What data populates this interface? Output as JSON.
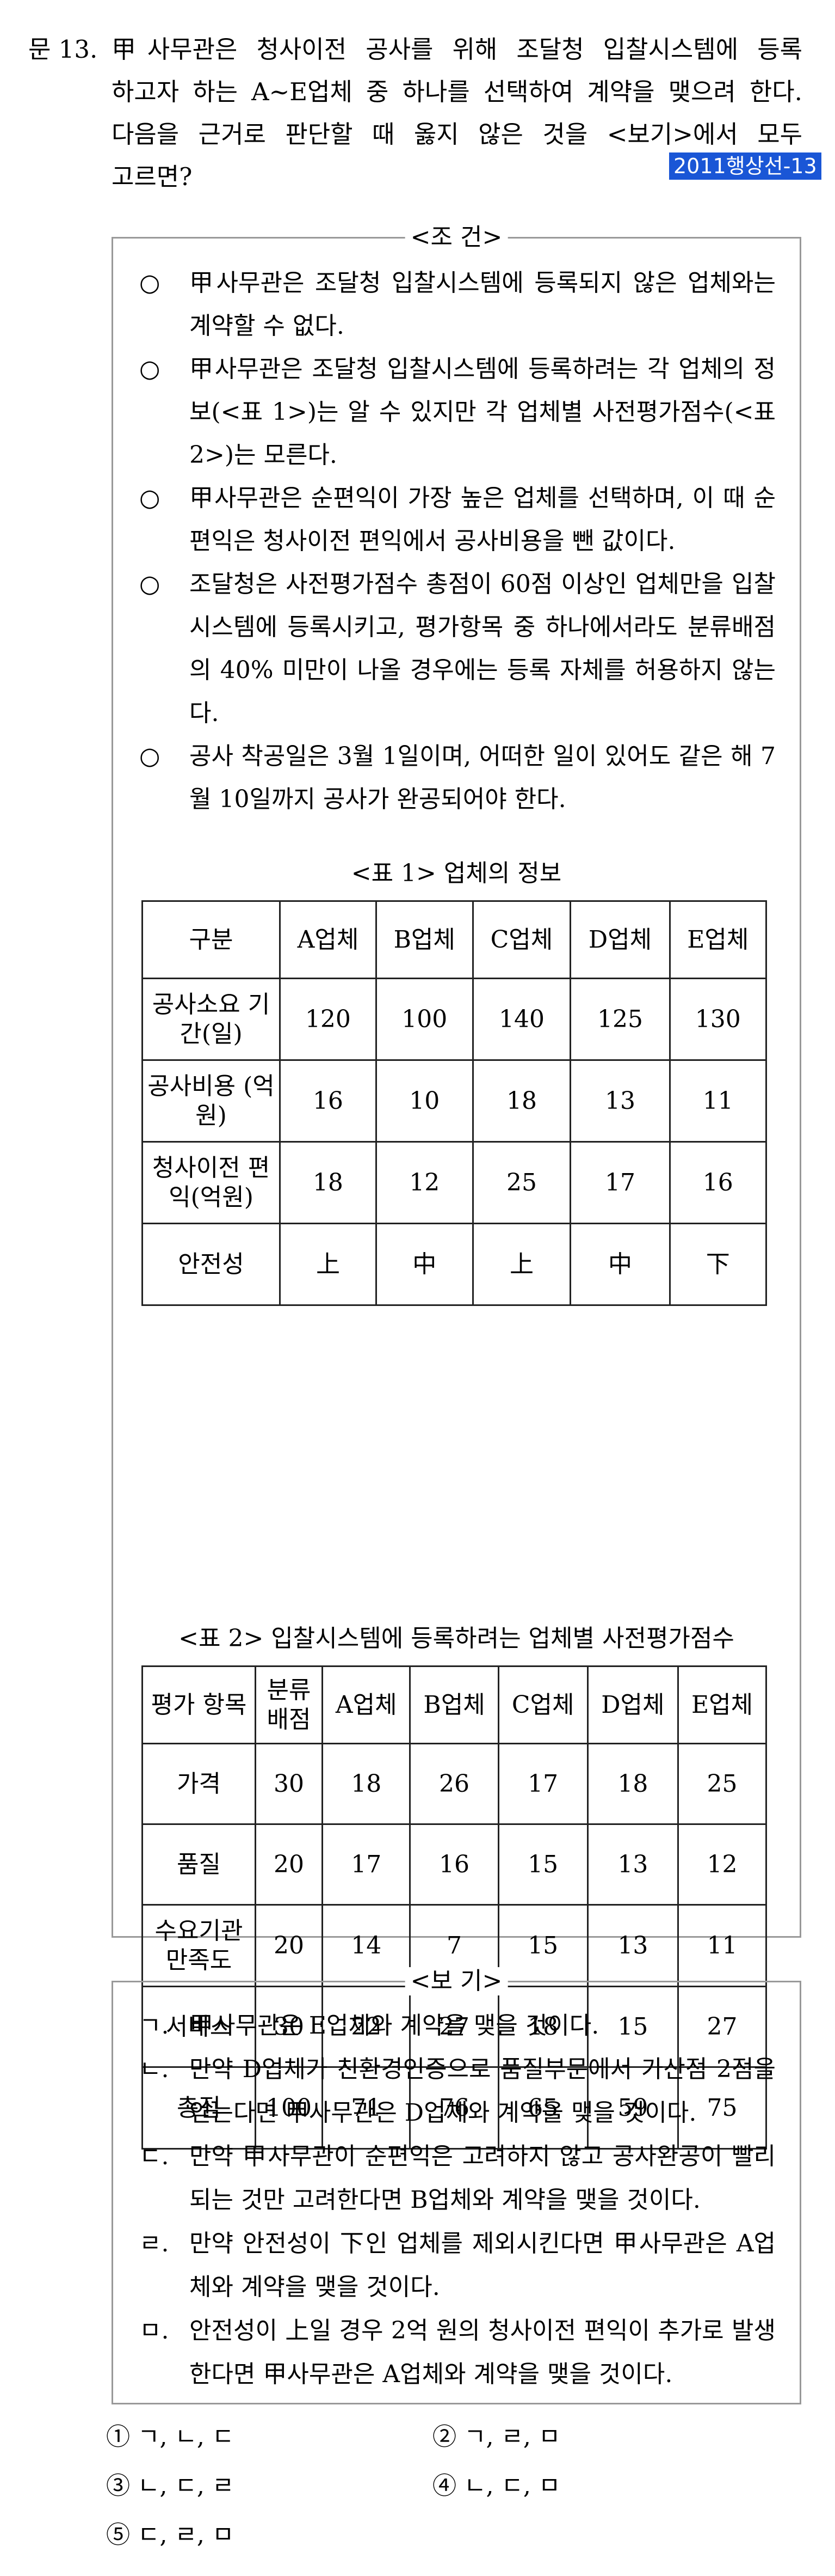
{
  "question": {
    "number": "문 13.",
    "stem_lines": [
      "甲사무관은 청사이전 공사를 위해 조달청 입찰시스템에 등록",
      "하고자 하는 A∼E업체 중 하나를 선택하여 계약을 맺으려 한다.",
      "다음을 근거로 판단할 때 옳지 않은 것을 <보기>에서 모두",
      "고르면?"
    ],
    "source_badge": "2011행상선-13",
    "badge_color": "#1a56d6"
  },
  "conditions": {
    "title": "<조 건>",
    "bullet": "○",
    "items": [
      "甲사무관은 조달청 입찰시스템에 등록되지 않은 업체와는 계약할 수 없다.",
      "甲사무관은 조달청 입찰시스템에 등록하려는 각 업체의 정보(<표 1>)는 알 수 있지만 각 업체별 사전평가점수(<표 2>)는 모른다.",
      "甲사무관은 순편익이 가장 높은 업체를 선택하며, 이 때 순편익은 청사이전 편익에서 공사비용을 뺀 값이다.",
      "조달청은 사전평가점수 총점이 60점 이상인 업체만을 입찰시스템에 등록시키고, 평가항목 중 하나에서라도 분류배점의 40% 미만이 나올 경우에는 등록 자체를 허용하지 않는다.",
      "공사 착공일은 3월 1일이며, 어떠한 일이 있어도 같은 해 7월 10일까지 공사가 완공되어야 한다."
    ]
  },
  "table1": {
    "caption": "<표 1> 업체의 정보",
    "headers": [
      "구분",
      "A업체",
      "B업체",
      "C업체",
      "D업체",
      "E업체"
    ],
    "rows": [
      {
        "label": "공사소요 기간(일)",
        "values": [
          "120",
          "100",
          "140",
          "125",
          "130"
        ]
      },
      {
        "label": "공사비용 (억원)",
        "values": [
          "16",
          "10",
          "18",
          "13",
          "11"
        ]
      },
      {
        "label": "청사이전 편익(억원)",
        "values": [
          "18",
          "12",
          "25",
          "17",
          "16"
        ]
      },
      {
        "label": "안전성",
        "values": [
          "上",
          "中",
          "上",
          "中",
          "下"
        ]
      }
    ]
  },
  "table2": {
    "caption": "<표 2> 입찰시스템에 등록하려는 업체별 사전평가점수",
    "headers": [
      "평가 항목",
      "분류 배점",
      "A업체",
      "B업체",
      "C업체",
      "D업체",
      "E업체"
    ],
    "rows": [
      {
        "label": "가격",
        "values": [
          "30",
          "18",
          "26",
          "17",
          "18",
          "25"
        ]
      },
      {
        "label": "품질",
        "values": [
          "20",
          "17",
          "16",
          "15",
          "13",
          "12"
        ]
      },
      {
        "label": "수요기관 만족도",
        "values": [
          "20",
          "14",
          "7",
          "15",
          "13",
          "11"
        ]
      },
      {
        "label": "서비스",
        "values": [
          "30",
          "22",
          "27",
          "18",
          "15",
          "27"
        ]
      },
      {
        "label": "총점",
        "values": [
          "100",
          "71",
          "76",
          "65",
          "59",
          "75"
        ]
      }
    ]
  },
  "bogi": {
    "title": "<보 기>",
    "items": [
      {
        "mark": "ㄱ.",
        "text": "甲사무관은 E업체와 계약을 맺을 것이다."
      },
      {
        "mark": "ㄴ.",
        "text": "만약 D업체가 친환경인증으로 품질부문에서 가산점 2점을 얻는다면 甲사무관은 D업체와 계약을 맺을 것이다."
      },
      {
        "mark": "ㄷ.",
        "text": "만약 甲사무관이 순편익은 고려하지 않고 공사완공이 빨리 되는 것만 고려한다면 B업체와 계약을 맺을 것이다."
      },
      {
        "mark": "ㄹ.",
        "text": "만약 안전성이 下인 업체를 제외시킨다면 甲사무관은 A업체와 계약을 맺을 것이다."
      },
      {
        "mark": "ㅁ.",
        "text": "안전성이 上일 경우 2억 원의 청사이전 편익이 추가로 발생한다면 甲사무관은 A업체와 계약을 맺을 것이다."
      }
    ]
  },
  "choices": [
    {
      "num": "①",
      "text": "ㄱ, ㄴ, ㄷ"
    },
    {
      "num": "②",
      "text": "ㄱ, ㄹ, ㅁ"
    },
    {
      "num": "③",
      "text": "ㄴ, ㄷ, ㄹ"
    },
    {
      "num": "④",
      "text": "ㄴ, ㄷ, ㅁ"
    },
    {
      "num": "⑤",
      "text": "ㄷ, ㄹ, ㅁ"
    }
  ]
}
